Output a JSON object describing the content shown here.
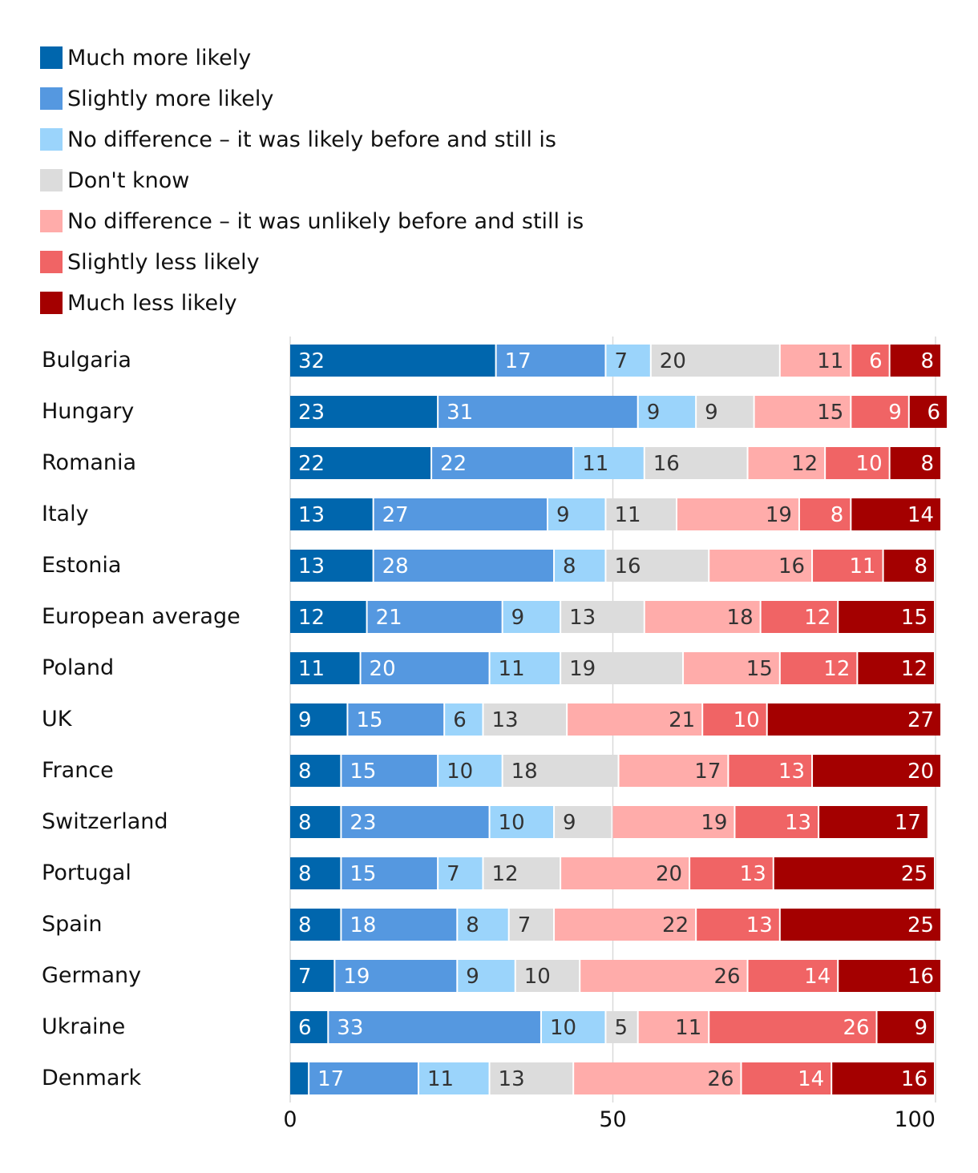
{
  "chart_data": {
    "type": "bar",
    "orientation": "horizontal",
    "stacked": true,
    "legend_position": "top-left",
    "grid": true,
    "xlim": [
      0,
      100
    ],
    "x_ticks": [
      0,
      50,
      100
    ],
    "series_names": [
      "Much more likely",
      "Slightly more likely",
      "No difference – it was likely before and still is",
      "Don't know",
      "No difference – it was unlikely before and still is",
      "Slightly less likely",
      "Much less likely"
    ],
    "series_colors": [
      "#0066ad",
      "#5598e0",
      "#9bd4fb",
      "#dcdcdc",
      "#ffacaa",
      "#f06465",
      "#a40000"
    ],
    "label_colors": [
      "#ffffff",
      "#ffffff",
      "#333333",
      "#333333",
      "#333333",
      "#ffffff",
      "#ffffff"
    ],
    "categories": [
      "Bulgaria",
      "Hungary",
      "Romania",
      "Italy",
      "Estonia",
      "European average",
      "Poland",
      "UK",
      "France",
      "Switzerland",
      "Portugal",
      "Spain",
      "Germany",
      "Ukraine",
      "Denmark"
    ],
    "rows": [
      {
        "name": "Bulgaria",
        "values": [
          32,
          17,
          7,
          20,
          11,
          6,
          8
        ],
        "labels": [
          "32",
          "17",
          "7",
          "20",
          "11",
          "6",
          "8"
        ]
      },
      {
        "name": "Hungary",
        "values": [
          23,
          31,
          9,
          9,
          15,
          9,
          6
        ],
        "labels": [
          "23",
          "31",
          "9",
          "9",
          "15",
          "9",
          "6"
        ]
      },
      {
        "name": "Romania",
        "values": [
          22,
          22,
          11,
          16,
          12,
          10,
          8
        ],
        "labels": [
          "22",
          "22",
          "11",
          "16",
          "12",
          "10",
          "8"
        ]
      },
      {
        "name": "Italy",
        "values": [
          13,
          27,
          9,
          11,
          19,
          8,
          14
        ],
        "labels": [
          "13",
          "27",
          "9",
          "11",
          "19",
          "8",
          "14"
        ]
      },
      {
        "name": "Estonia",
        "values": [
          13,
          28,
          8,
          16,
          16,
          11,
          8
        ],
        "labels": [
          "13",
          "28",
          "8",
          "16",
          "16",
          "11",
          "8"
        ]
      },
      {
        "name": "European average",
        "values": [
          12,
          21,
          9,
          13,
          18,
          12,
          15
        ],
        "labels": [
          "12",
          "21",
          "9",
          "13",
          "18",
          "12",
          "15"
        ]
      },
      {
        "name": "Poland",
        "values": [
          11,
          20,
          11,
          19,
          15,
          12,
          12
        ],
        "labels": [
          "11",
          "20",
          "11",
          "19",
          "15",
          "12",
          "12"
        ]
      },
      {
        "name": "UK",
        "values": [
          9,
          15,
          6,
          13,
          21,
          10,
          27
        ],
        "labels": [
          "9",
          "15",
          "6",
          "13",
          "21",
          "10",
          "27"
        ]
      },
      {
        "name": "France",
        "values": [
          8,
          15,
          10,
          18,
          17,
          13,
          20
        ],
        "labels": [
          "8",
          "15",
          "10",
          "18",
          "17",
          "13",
          "20"
        ]
      },
      {
        "name": "Switzerland",
        "values": [
          8,
          23,
          10,
          9,
          19,
          13,
          17
        ],
        "labels": [
          "8",
          "23",
          "10",
          "9",
          "19",
          "13",
          "17"
        ]
      },
      {
        "name": "Portugal",
        "values": [
          8,
          15,
          7,
          12,
          20,
          13,
          25
        ],
        "labels": [
          "8",
          "15",
          "7",
          "12",
          "20",
          "13",
          "25"
        ]
      },
      {
        "name": "Spain",
        "values": [
          8,
          18,
          8,
          7,
          22,
          13,
          25
        ],
        "labels": [
          "8",
          "18",
          "8",
          "7",
          "22",
          "13",
          "25"
        ]
      },
      {
        "name": "Germany",
        "values": [
          7,
          19,
          9,
          10,
          26,
          14,
          16
        ],
        "labels": [
          "7",
          "19",
          "9",
          "10",
          "26",
          "14",
          "16"
        ]
      },
      {
        "name": "Ukraine",
        "values": [
          6,
          33,
          10,
          5,
          11,
          26,
          9
        ],
        "labels": [
          "6",
          "33",
          "10",
          "5",
          "11",
          "26",
          "9"
        ]
      },
      {
        "name": "Denmark",
        "values": [
          3,
          17,
          11,
          13,
          26,
          14,
          16
        ],
        "labels": [
          "",
          "17",
          "11",
          "13",
          "26",
          "14",
          "16"
        ]
      }
    ]
  }
}
